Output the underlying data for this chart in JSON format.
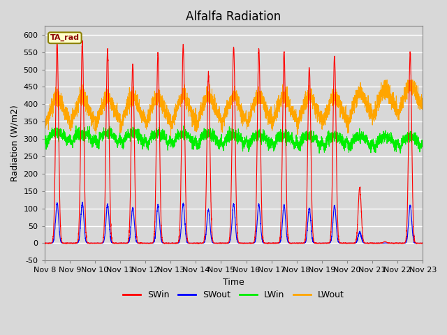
{
  "title": "Alfalfa Radiation",
  "xlabel": "Time",
  "ylabel": "Radiation (W/m2)",
  "ylim": [
    -50,
    625
  ],
  "legend_label": "TA_rad",
  "series": {
    "SWin": {
      "color": "#FF0000",
      "label": "SWin"
    },
    "SWout": {
      "color": "#0000FF",
      "label": "SWout"
    },
    "LWin": {
      "color": "#00EE00",
      "label": "LWin"
    },
    "LWout": {
      "color": "#FFA500",
      "label": "LWout"
    }
  },
  "xtick_labels": [
    "Nov 8",
    "Nov 9",
    "Nov 10",
    "Nov 11",
    "Nov 12",
    "Nov 13",
    "Nov 14",
    "Nov 15",
    "Nov 16",
    "Nov 17",
    "Nov 18",
    "Nov 19",
    "Nov 20",
    "Nov 21",
    "Nov 22",
    "Nov 23"
  ],
  "ytick_values": [
    -50,
    0,
    50,
    100,
    150,
    200,
    250,
    300,
    350,
    400,
    450,
    500,
    550,
    600
  ],
  "background_color": "#D8D8D8",
  "plot_bg_color": "#D8D8D8",
  "grid_color": "#FFFFFF",
  "title_fontsize": 12,
  "axis_label_fontsize": 9,
  "tick_fontsize": 8,
  "SWin_peaks": [
    580,
    578,
    555,
    515,
    548,
    570,
    485,
    565,
    560,
    550,
    505,
    540,
    160,
    5,
    550
  ],
  "LWin_base": 300,
  "LWout_base": 350,
  "n_days": 15,
  "pts_per_day": 288
}
